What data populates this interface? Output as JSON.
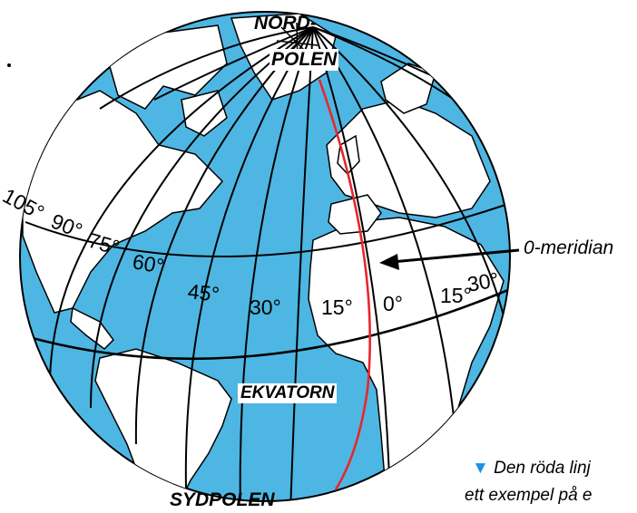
{
  "labels": {
    "north_pole_line1": "NORD-",
    "north_pole_line2": "POLEN",
    "south_pole": "SYDPOLEN",
    "equator": "EKVATORN",
    "meridian_callout": "0-meridian"
  },
  "longitudes": [
    "105°",
    "90°",
    "75°",
    "60°",
    "45°",
    "30°",
    "15°",
    "0°",
    "15°",
    "30°"
  ],
  "caption": {
    "marker": "▼",
    "line1": "Den röda linj",
    "line2": "ett exempel på e"
  },
  "colors": {
    "ocean": "#4eb6e2",
    "land": "#ffffff",
    "outline": "#000000",
    "prime_meridian": "#e8262b",
    "caption_marker": "#1e90e0"
  }
}
